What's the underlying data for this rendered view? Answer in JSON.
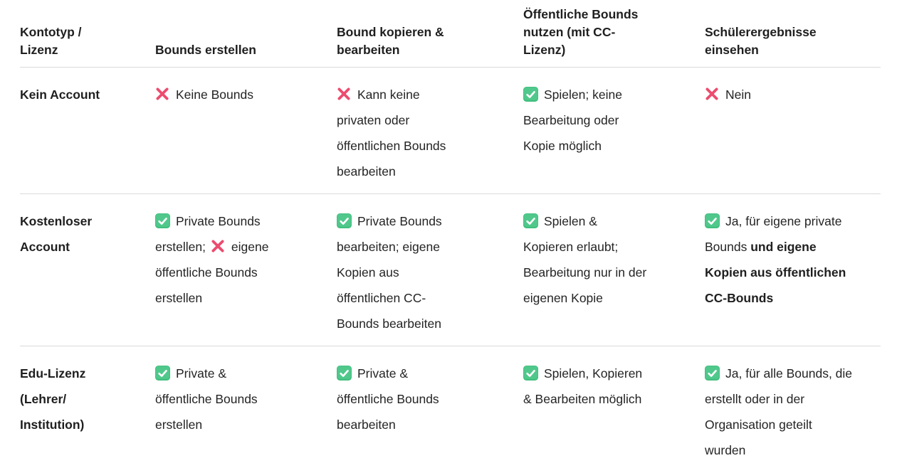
{
  "colors": {
    "check_bg_top": "#5dd097",
    "check_bg_bottom": "#42bf7e",
    "check_mark": "#ffffff",
    "cross": "#ec4c6f",
    "divider": "#dadada",
    "heading_text": "#1f1f1f",
    "body_text": "#242424"
  },
  "table": {
    "columns": [
      "Kontotyp /\nLizenz",
      "Bounds erstellen",
      "Bound kopieren &\nbearbeiten",
      "Öffentliche Bounds\nnutzen (mit CC-\nLizenz)",
      "Schülerergebnisse\neinsehen"
    ],
    "rows": [
      {
        "label": "Kein Account",
        "cells": [
          {
            "parts": [
              {
                "icon": "cross"
              },
              {
                "text": "Keine Bounds"
              }
            ]
          },
          {
            "parts": [
              {
                "icon": "cross"
              },
              {
                "text": "Kann keine\nprivaten oder\nöffentlichen Bounds\nbearbeiten"
              }
            ]
          },
          {
            "parts": [
              {
                "icon": "check"
              },
              {
                "text": "Spielen; keine\nBearbeitung oder\nKopie möglich"
              }
            ]
          },
          {
            "parts": [
              {
                "icon": "cross"
              },
              {
                "text": "Nein"
              }
            ]
          }
        ]
      },
      {
        "label": "Kostenloser\nAccount",
        "cells": [
          {
            "parts": [
              {
                "icon": "check"
              },
              {
                "text": "Private Bounds\nerstellen; "
              },
              {
                "icon": "cross"
              },
              {
                "text": "eigene\nöffentliche Bounds\nerstellen"
              }
            ]
          },
          {
            "parts": [
              {
                "icon": "check"
              },
              {
                "text": "Private Bounds\nbearbeiten; eigene\nKopien aus\nöffentlichen CC-\nBounds bearbeiten"
              }
            ]
          },
          {
            "parts": [
              {
                "icon": "check"
              },
              {
                "text": "Spielen &\nKopieren erlaubt;\nBearbeitung nur in der\neigenen Kopie"
              }
            ]
          },
          {
            "parts": [
              {
                "icon": "check"
              },
              {
                "text": "Ja, für eigene private\nBounds "
              },
              {
                "text": "und eigene\nKopien aus öffentlichen\nCC-Bounds",
                "bold": true
              }
            ]
          }
        ]
      },
      {
        "label": "Edu-Lizenz\n(Lehrer/\nInstitution)",
        "cells": [
          {
            "parts": [
              {
                "icon": "check"
              },
              {
                "text": "Private &\nöffentliche Bounds\nerstellen"
              }
            ]
          },
          {
            "parts": [
              {
                "icon": "check"
              },
              {
                "text": "Private &\nöffentliche Bounds\nbearbeiten"
              }
            ]
          },
          {
            "parts": [
              {
                "icon": "check"
              },
              {
                "text": "Spielen, Kopieren\n& Bearbeiten möglich"
              }
            ]
          },
          {
            "parts": [
              {
                "icon": "check"
              },
              {
                "text": "Ja, für alle Bounds, die\nerstellt oder in der\nOrganisation geteilt\nwurden"
              }
            ]
          }
        ]
      }
    ]
  }
}
